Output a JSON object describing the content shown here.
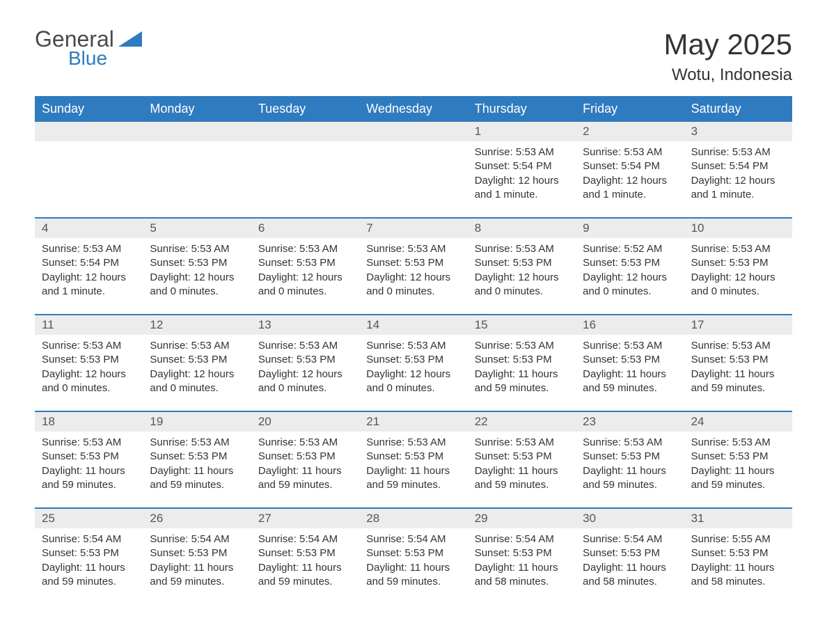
{
  "logo": {
    "text1": "General",
    "text2": "Blue",
    "text_color": "#4a4a4a",
    "blue_color": "#2f7bbf"
  },
  "title": "May 2025",
  "subtitle": "Wotu, Indonesia",
  "colors": {
    "header_bg": "#2f7bbf",
    "header_text": "#ffffff",
    "daynum_bg": "#ececec",
    "border": "#2f7bbf",
    "body_text": "#333333",
    "background": "#ffffff"
  },
  "typography": {
    "title_fontsize": 42,
    "subtitle_fontsize": 24,
    "header_fontsize": 18,
    "daynum_fontsize": 17,
    "cell_fontsize": 15
  },
  "day_names": [
    "Sunday",
    "Monday",
    "Tuesday",
    "Wednesday",
    "Thursday",
    "Friday",
    "Saturday"
  ],
  "weeks": [
    [
      {
        "empty": true
      },
      {
        "empty": true
      },
      {
        "empty": true
      },
      {
        "empty": true
      },
      {
        "num": "1",
        "sunrise": "Sunrise: 5:53 AM",
        "sunset": "Sunset: 5:54 PM",
        "daylight": "Daylight: 12 hours and 1 minute."
      },
      {
        "num": "2",
        "sunrise": "Sunrise: 5:53 AM",
        "sunset": "Sunset: 5:54 PM",
        "daylight": "Daylight: 12 hours and 1 minute."
      },
      {
        "num": "3",
        "sunrise": "Sunrise: 5:53 AM",
        "sunset": "Sunset: 5:54 PM",
        "daylight": "Daylight: 12 hours and 1 minute."
      }
    ],
    [
      {
        "num": "4",
        "sunrise": "Sunrise: 5:53 AM",
        "sunset": "Sunset: 5:54 PM",
        "daylight": "Daylight: 12 hours and 1 minute."
      },
      {
        "num": "5",
        "sunrise": "Sunrise: 5:53 AM",
        "sunset": "Sunset: 5:53 PM",
        "daylight": "Daylight: 12 hours and 0 minutes."
      },
      {
        "num": "6",
        "sunrise": "Sunrise: 5:53 AM",
        "sunset": "Sunset: 5:53 PM",
        "daylight": "Daylight: 12 hours and 0 minutes."
      },
      {
        "num": "7",
        "sunrise": "Sunrise: 5:53 AM",
        "sunset": "Sunset: 5:53 PM",
        "daylight": "Daylight: 12 hours and 0 minutes."
      },
      {
        "num": "8",
        "sunrise": "Sunrise: 5:53 AM",
        "sunset": "Sunset: 5:53 PM",
        "daylight": "Daylight: 12 hours and 0 minutes."
      },
      {
        "num": "9",
        "sunrise": "Sunrise: 5:52 AM",
        "sunset": "Sunset: 5:53 PM",
        "daylight": "Daylight: 12 hours and 0 minutes."
      },
      {
        "num": "10",
        "sunrise": "Sunrise: 5:53 AM",
        "sunset": "Sunset: 5:53 PM",
        "daylight": "Daylight: 12 hours and 0 minutes."
      }
    ],
    [
      {
        "num": "11",
        "sunrise": "Sunrise: 5:53 AM",
        "sunset": "Sunset: 5:53 PM",
        "daylight": "Daylight: 12 hours and 0 minutes."
      },
      {
        "num": "12",
        "sunrise": "Sunrise: 5:53 AM",
        "sunset": "Sunset: 5:53 PM",
        "daylight": "Daylight: 12 hours and 0 minutes."
      },
      {
        "num": "13",
        "sunrise": "Sunrise: 5:53 AM",
        "sunset": "Sunset: 5:53 PM",
        "daylight": "Daylight: 12 hours and 0 minutes."
      },
      {
        "num": "14",
        "sunrise": "Sunrise: 5:53 AM",
        "sunset": "Sunset: 5:53 PM",
        "daylight": "Daylight: 12 hours and 0 minutes."
      },
      {
        "num": "15",
        "sunrise": "Sunrise: 5:53 AM",
        "sunset": "Sunset: 5:53 PM",
        "daylight": "Daylight: 11 hours and 59 minutes."
      },
      {
        "num": "16",
        "sunrise": "Sunrise: 5:53 AM",
        "sunset": "Sunset: 5:53 PM",
        "daylight": "Daylight: 11 hours and 59 minutes."
      },
      {
        "num": "17",
        "sunrise": "Sunrise: 5:53 AM",
        "sunset": "Sunset: 5:53 PM",
        "daylight": "Daylight: 11 hours and 59 minutes."
      }
    ],
    [
      {
        "num": "18",
        "sunrise": "Sunrise: 5:53 AM",
        "sunset": "Sunset: 5:53 PM",
        "daylight": "Daylight: 11 hours and 59 minutes."
      },
      {
        "num": "19",
        "sunrise": "Sunrise: 5:53 AM",
        "sunset": "Sunset: 5:53 PM",
        "daylight": "Daylight: 11 hours and 59 minutes."
      },
      {
        "num": "20",
        "sunrise": "Sunrise: 5:53 AM",
        "sunset": "Sunset: 5:53 PM",
        "daylight": "Daylight: 11 hours and 59 minutes."
      },
      {
        "num": "21",
        "sunrise": "Sunrise: 5:53 AM",
        "sunset": "Sunset: 5:53 PM",
        "daylight": "Daylight: 11 hours and 59 minutes."
      },
      {
        "num": "22",
        "sunrise": "Sunrise: 5:53 AM",
        "sunset": "Sunset: 5:53 PM",
        "daylight": "Daylight: 11 hours and 59 minutes."
      },
      {
        "num": "23",
        "sunrise": "Sunrise: 5:53 AM",
        "sunset": "Sunset: 5:53 PM",
        "daylight": "Daylight: 11 hours and 59 minutes."
      },
      {
        "num": "24",
        "sunrise": "Sunrise: 5:53 AM",
        "sunset": "Sunset: 5:53 PM",
        "daylight": "Daylight: 11 hours and 59 minutes."
      }
    ],
    [
      {
        "num": "25",
        "sunrise": "Sunrise: 5:54 AM",
        "sunset": "Sunset: 5:53 PM",
        "daylight": "Daylight: 11 hours and 59 minutes."
      },
      {
        "num": "26",
        "sunrise": "Sunrise: 5:54 AM",
        "sunset": "Sunset: 5:53 PM",
        "daylight": "Daylight: 11 hours and 59 minutes."
      },
      {
        "num": "27",
        "sunrise": "Sunrise: 5:54 AM",
        "sunset": "Sunset: 5:53 PM",
        "daylight": "Daylight: 11 hours and 59 minutes."
      },
      {
        "num": "28",
        "sunrise": "Sunrise: 5:54 AM",
        "sunset": "Sunset: 5:53 PM",
        "daylight": "Daylight: 11 hours and 59 minutes."
      },
      {
        "num": "29",
        "sunrise": "Sunrise: 5:54 AM",
        "sunset": "Sunset: 5:53 PM",
        "daylight": "Daylight: 11 hours and 58 minutes."
      },
      {
        "num": "30",
        "sunrise": "Sunrise: 5:54 AM",
        "sunset": "Sunset: 5:53 PM",
        "daylight": "Daylight: 11 hours and 58 minutes."
      },
      {
        "num": "31",
        "sunrise": "Sunrise: 5:55 AM",
        "sunset": "Sunset: 5:53 PM",
        "daylight": "Daylight: 11 hours and 58 minutes."
      }
    ]
  ]
}
